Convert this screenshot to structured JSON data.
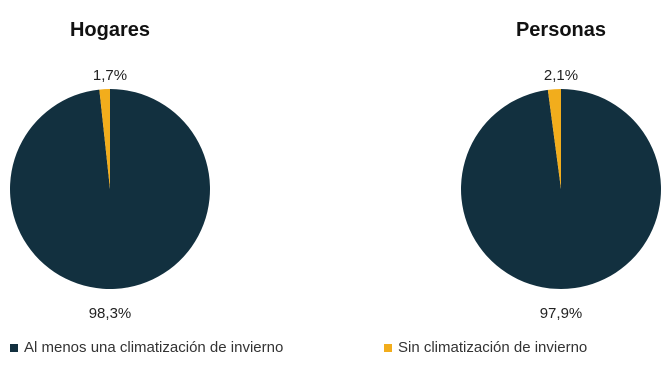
{
  "chart_data": [
    {
      "type": "pie",
      "title": "Hogares",
      "slices": [
        {
          "label": "Al menos una climatización de invierno",
          "value": 98.3,
          "display": "98,3%",
          "color": "#12303f"
        },
        {
          "label": "Sin climatización de invierno",
          "value": 1.7,
          "display": "1,7%",
          "color": "#f2ad1c"
        }
      ]
    },
    {
      "type": "pie",
      "title": "Personas",
      "slices": [
        {
          "label": "Al menos una climatización de invierno",
          "value": 97.9,
          "display": "97,9%",
          "color": "#12303f"
        },
        {
          "label": "Sin climatización de invierno",
          "value": 2.1,
          "display": "2,1%",
          "color": "#f2ad1c"
        }
      ]
    }
  ],
  "legend": [
    {
      "label": "Al menos una climatización de invierno",
      "color": "#12303f"
    },
    {
      "label": "Sin climatización de invierno",
      "color": "#f2ad1c"
    }
  ]
}
